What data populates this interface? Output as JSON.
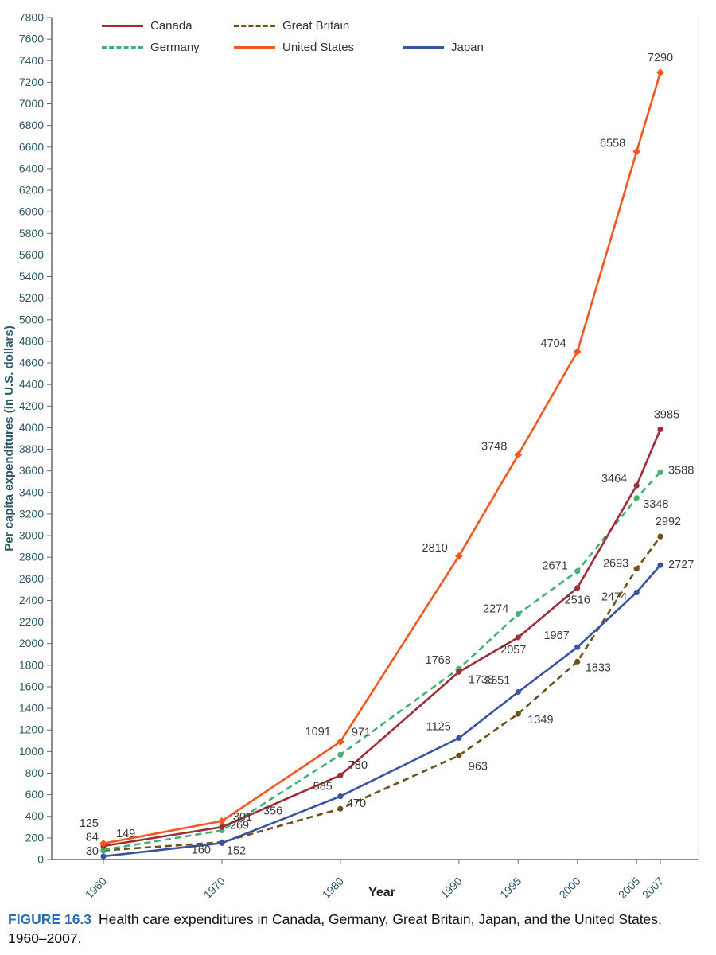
{
  "figure": {
    "label": "FIGURE 16.3",
    "caption": "Health care expenditures in Canada, Germany, Great Britain, Japan, and the United States, 1960–2007."
  },
  "chart_data": {
    "type": "line",
    "title": "",
    "xlabel": "Year",
    "ylabel": "Per capita expenditures (in U.S. dollars)",
    "x": [
      1960,
      1970,
      1980,
      1990,
      1995,
      2000,
      2005,
      2007
    ],
    "ylim": [
      0,
      7800
    ],
    "ytick_step": 200,
    "grid": false,
    "legend_position": "top-left-inside",
    "legend_rows": [
      [
        "Canada",
        "Great Britain"
      ],
      [
        "Germany",
        "United States",
        "Japan"
      ]
    ],
    "series": [
      {
        "name": "Canada",
        "color": "#a02c3a",
        "dash": "solid",
        "values": [
          125,
          301,
          780,
          1738,
          2057,
          2516,
          3464,
          3985
        ]
      },
      {
        "name": "Germany",
        "color": "#45b072",
        "dash": "dashed",
        "values": [
          90,
          269,
          971,
          1768,
          2274,
          2671,
          3348,
          3588
        ]
      },
      {
        "name": "Great Britain",
        "color": "#6e5019",
        "dash": "dashed",
        "values": [
          84,
          160,
          470,
          963,
          1349,
          1833,
          2693,
          2992
        ]
      },
      {
        "name": "United States",
        "color": "#f2571d",
        "dash": "solid",
        "values": [
          149,
          356,
          1091,
          2810,
          3748,
          4704,
          6558,
          7290
        ]
      },
      {
        "name": "Japan",
        "color": "#3a53a4",
        "dash": "solid",
        "values": [
          30,
          152,
          585,
          1125,
          1551,
          1967,
          2474,
          2727
        ]
      }
    ],
    "point_labels": [
      [
        "125",
        "301",
        "780",
        "1738",
        "2057",
        "2516",
        "3464",
        "3985"
      ],
      [
        null,
        "269",
        "971",
        "1768",
        "2274",
        "2671",
        "3348",
        "3588"
      ],
      [
        "84",
        "160",
        "470",
        "963",
        "1349",
        "1833",
        "2693",
        "2992"
      ],
      [
        "149",
        "356",
        "1091",
        "2810",
        "3748",
        "4704",
        "6558",
        "7290"
      ],
      [
        "30",
        "152",
        "585",
        "1125",
        "1551",
        "1967",
        "2474",
        "2727"
      ]
    ]
  }
}
